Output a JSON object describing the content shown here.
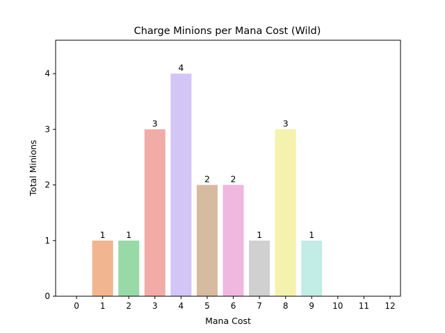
{
  "chart_data": {
    "type": "bar",
    "title": "Charge Minions per Mana Cost (Wild)",
    "xlabel": "Mana Cost",
    "ylabel": "Total Minions",
    "categories": [
      "0",
      "1",
      "2",
      "3",
      "4",
      "5",
      "6",
      "7",
      "8",
      "9",
      "10",
      "11",
      "12"
    ],
    "values": [
      0,
      1,
      1,
      3,
      4,
      2,
      2,
      1,
      3,
      1,
      0,
      0,
      0
    ],
    "data_labels": [
      "",
      "1",
      "1",
      "3",
      "4",
      "2",
      "2",
      "1",
      "3",
      "1",
      "",
      "",
      ""
    ],
    "bar_colors": [
      "#f1b690",
      "#f1b690",
      "#98d9a8",
      "#f2aca7",
      "#d3c5f6",
      "#d7bba1",
      "#f0b7df",
      "#d0d0d0",
      "#f4f2ad",
      "#c2ece6",
      "#c2ece6",
      "#c2ece6",
      "#c2ece6"
    ],
    "yticks": [
      "0",
      "1",
      "2",
      "3",
      "4"
    ],
    "ylim": [
      0,
      4.6
    ],
    "xlim": [
      -0.8,
      12.4
    ],
    "grid": false,
    "legend": "none"
  }
}
